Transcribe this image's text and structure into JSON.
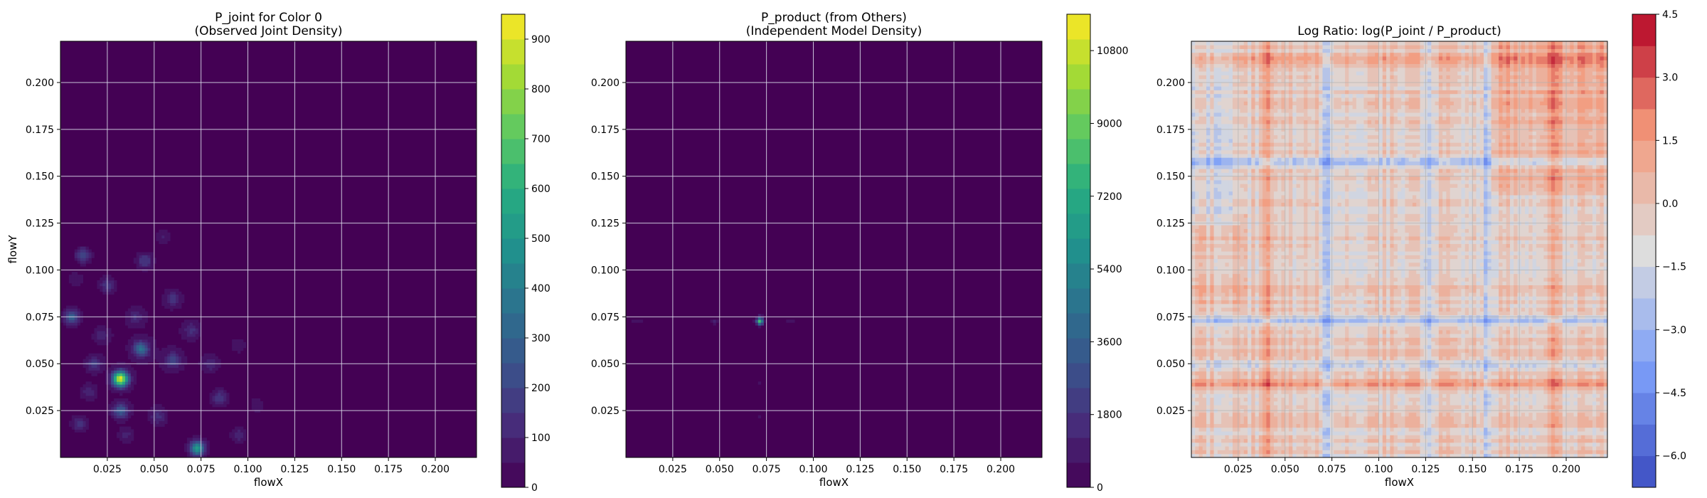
{
  "chart_data": [
    {
      "type": "contour",
      "title": "P_joint for Color 0\n(Observed Joint Density)",
      "xlabel": "flowX",
      "ylabel": "flowY",
      "xlim": [
        0.0,
        0.222
      ],
      "ylim": [
        0.0,
        0.222
      ],
      "xticks": [
        0.025,
        0.05,
        0.075,
        0.1,
        0.125,
        0.15,
        0.175,
        0.2
      ],
      "xtick_labels": [
        "0.025",
        "0.050",
        "0.075",
        "0.100",
        "0.125",
        "0.150",
        "0.175",
        "0.200"
      ],
      "yticks": [
        0.025,
        0.05,
        0.075,
        0.1,
        0.125,
        0.15,
        0.175,
        0.2
      ],
      "ytick_labels": [
        "0.025",
        "0.050",
        "0.075",
        "0.100",
        "0.125",
        "0.150",
        "0.175",
        "0.200"
      ],
      "grid": true,
      "colormap": "viridis",
      "background_color": "#440154",
      "colorbar": {
        "min": 0,
        "max": 950,
        "ticks": [
          0,
          100,
          200,
          300,
          400,
          500,
          600,
          700,
          800,
          900
        ],
        "tick_labels": [
          "0",
          "100",
          "200",
          "300",
          "400",
          "500",
          "600",
          "700",
          "800",
          "900"
        ]
      },
      "peaks": [
        {
          "x": 0.032,
          "y": 0.042,
          "value": 900
        },
        {
          "x": 0.073,
          "y": 0.005,
          "value": 520
        },
        {
          "x": 0.043,
          "y": 0.058,
          "value": 340
        },
        {
          "x": 0.006,
          "y": 0.075,
          "value": 300
        },
        {
          "x": 0.032,
          "y": 0.025,
          "value": 280
        },
        {
          "x": 0.012,
          "y": 0.108,
          "value": 220
        },
        {
          "x": 0.06,
          "y": 0.052,
          "value": 200
        },
        {
          "x": 0.045,
          "y": 0.105,
          "value": 180
        },
        {
          "x": 0.018,
          "y": 0.05,
          "value": 170
        },
        {
          "x": 0.085,
          "y": 0.032,
          "value": 160
        },
        {
          "x": 0.01,
          "y": 0.018,
          "value": 160
        },
        {
          "x": 0.025,
          "y": 0.092,
          "value": 150
        },
        {
          "x": 0.06,
          "y": 0.085,
          "value": 140
        },
        {
          "x": 0.052,
          "y": 0.022,
          "value": 130
        },
        {
          "x": 0.07,
          "y": 0.068,
          "value": 120
        },
        {
          "x": 0.095,
          "y": 0.012,
          "value": 120
        },
        {
          "x": 0.04,
          "y": 0.075,
          "value": 110
        },
        {
          "x": 0.08,
          "y": 0.05,
          "value": 110
        },
        {
          "x": 0.022,
          "y": 0.065,
          "value": 100
        },
        {
          "x": 0.055,
          "y": 0.118,
          "value": 90
        },
        {
          "x": 0.105,
          "y": 0.028,
          "value": 80
        },
        {
          "x": 0.015,
          "y": 0.035,
          "value": 110
        },
        {
          "x": 0.095,
          "y": 0.06,
          "value": 70
        },
        {
          "x": 0.035,
          "y": 0.012,
          "value": 90
        },
        {
          "x": 0.008,
          "y": 0.095,
          "value": 80
        }
      ]
    },
    {
      "type": "contour",
      "title": "P_product (from Others)\n(Independent Model Density)",
      "xlabel": "flowX",
      "ylabel": "",
      "xlim": [
        0.0,
        0.222
      ],
      "ylim": [
        0.0,
        0.222
      ],
      "xticks": [
        0.025,
        0.05,
        0.075,
        0.1,
        0.125,
        0.15,
        0.175,
        0.2
      ],
      "xtick_labels": [
        "0.025",
        "0.050",
        "0.075",
        "0.100",
        "0.125",
        "0.150",
        "0.175",
        "0.200"
      ],
      "yticks": [
        0.025,
        0.05,
        0.075,
        0.1,
        0.125,
        0.15,
        0.175,
        0.2
      ],
      "ytick_labels": [
        "0.025",
        "0.050",
        "0.075",
        "0.100",
        "0.125",
        "0.150",
        "0.175",
        "0.200"
      ],
      "grid": true,
      "colormap": "viridis",
      "background_color": "#440154",
      "colorbar": {
        "min": 0,
        "max": 11700,
        "ticks": [
          0,
          1800,
          3600,
          5400,
          7200,
          9000,
          10800
        ],
        "tick_labels": [
          "0",
          "1800",
          "3600",
          "5400",
          "7200",
          "9000",
          "10800"
        ]
      },
      "peaks": [
        {
          "x": 0.0715,
          "y": 0.0725,
          "value": 7200
        },
        {
          "x": 0.0715,
          "y": 0.0745,
          "value": 1800
        },
        {
          "x": 0.047,
          "y": 0.0725,
          "value": 900
        },
        {
          "x": 0.006,
          "y": 0.0725,
          "value": 700
        },
        {
          "x": 0.0715,
          "y": 0.04,
          "value": 500
        },
        {
          "x": 0.0715,
          "y": 0.022,
          "value": 400
        },
        {
          "x": 0.088,
          "y": 0.0725,
          "value": 350
        }
      ],
      "lines": [
        {
          "orientation": "horizontal",
          "at": 0.0725,
          "value": 500
        },
        {
          "orientation": "vertical",
          "at": 0.0715,
          "value": 300
        }
      ]
    },
    {
      "type": "heatmap",
      "title": "Log Ratio: log(P_joint / P_product)",
      "xlabel": "flowX",
      "ylabel": "",
      "xlim": [
        0.0,
        0.222
      ],
      "ylim": [
        0.0,
        0.222
      ],
      "xticks": [
        0.025,
        0.05,
        0.075,
        0.1,
        0.125,
        0.15,
        0.175,
        0.2
      ],
      "xtick_labels": [
        "0.025",
        "0.050",
        "0.075",
        "0.100",
        "0.125",
        "0.150",
        "0.175",
        "0.200"
      ],
      "yticks": [
        0.025,
        0.05,
        0.075,
        0.1,
        0.125,
        0.15,
        0.175,
        0.2
      ],
      "ytick_labels": [
        "0.025",
        "0.050",
        "0.075",
        "0.100",
        "0.125",
        "0.150",
        "0.175",
        "0.200"
      ],
      "grid": true,
      "colormap": "coolwarm",
      "colorbar": {
        "min": -6.75,
        "max": 4.5,
        "ticks": [
          4.5,
          3.0,
          1.5,
          0.0,
          -1.5,
          -3.0,
          -4.5,
          -6.0
        ],
        "tick_labels": [
          "4.5",
          "3.0",
          "1.5",
          "0.0",
          "−1.5",
          "−3.0",
          "−4.5",
          "−6.0"
        ]
      },
      "cold_bands": [
        {
          "orientation": "horizontal",
          "at": 0.0735,
          "value": -2.2
        },
        {
          "orientation": "horizontal",
          "at": 0.158,
          "value": -1.8
        },
        {
          "orientation": "horizontal",
          "at": 0.05,
          "value": -1.4
        },
        {
          "orientation": "vertical",
          "at": 0.0715,
          "value": -2.2
        },
        {
          "orientation": "vertical",
          "at": 0.158,
          "value": -1.6
        },
        {
          "orientation": "vertical",
          "at": 0.127,
          "value": -1.2
        }
      ],
      "warm_bands": [
        {
          "orientation": "vertical",
          "at": 0.04,
          "value": 1.6
        },
        {
          "orientation": "vertical",
          "at": 0.195,
          "value": 1.5
        },
        {
          "orientation": "horizontal",
          "at": 0.04,
          "value": 1.5
        },
        {
          "orientation": "horizontal",
          "at": 0.212,
          "value": 1.3
        }
      ],
      "regions": [
        {
          "x0": 0.16,
          "x1": 0.222,
          "y0": 0.14,
          "y1": 0.222,
          "value": 1.5
        },
        {
          "x0": 0.0,
          "x1": 0.03,
          "y0": 0.08,
          "y1": 0.13,
          "value": 0.8
        },
        {
          "x0": 0.0,
          "x1": 0.025,
          "y0": 0.125,
          "y1": 0.222,
          "value": -0.9
        }
      ]
    }
  ]
}
